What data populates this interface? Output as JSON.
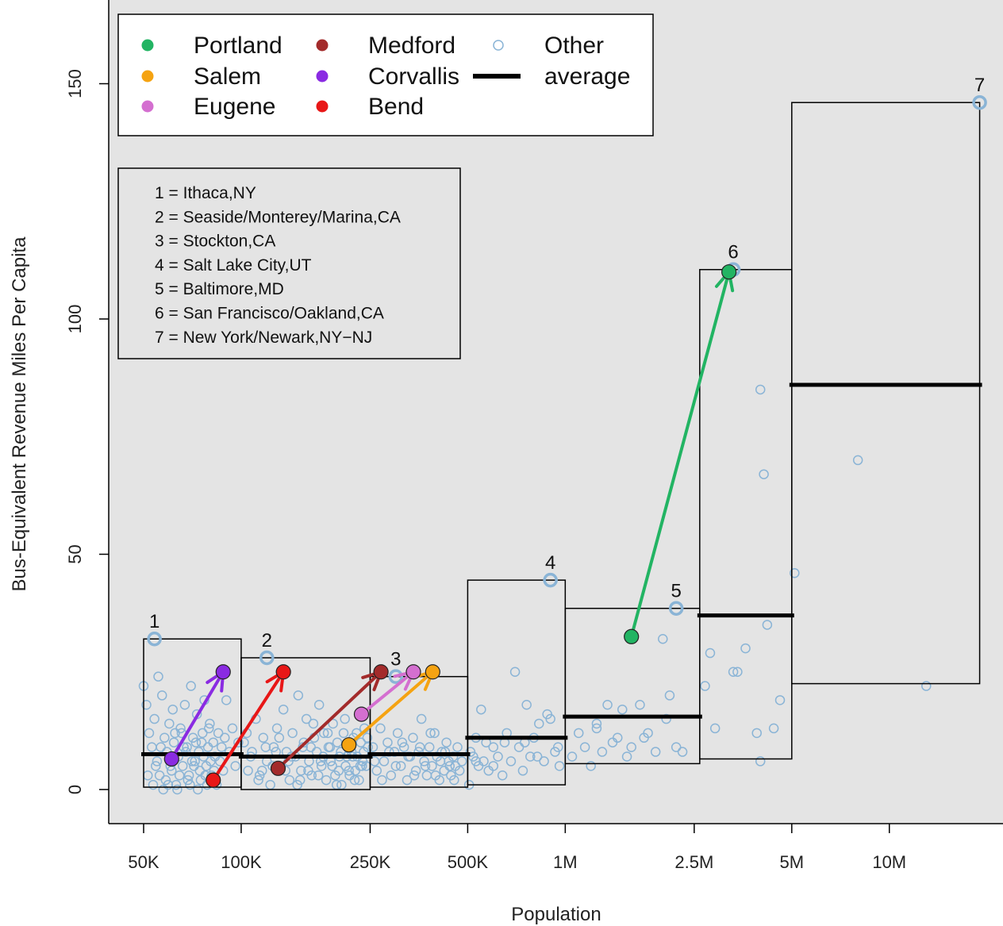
{
  "chart_data": {
    "type": "scatter",
    "title": "",
    "xlabel": "Population",
    "ylabel": "Bus-Equivalent Revenue Miles Per Capita",
    "x_scale": "log",
    "xlim": [
      42000,
      23000000
    ],
    "ylim": [
      -7,
      165
    ],
    "x_ticks": [
      {
        "value": 50000,
        "label": "50K"
      },
      {
        "value": 100000,
        "label": "100K"
      },
      {
        "value": 250000,
        "label": "250K"
      },
      {
        "value": 500000,
        "label": "500K"
      },
      {
        "value": 1000000,
        "label": "1M"
      },
      {
        "value": 2500000,
        "label": "2.5M"
      },
      {
        "value": 5000000,
        "label": "5M"
      },
      {
        "value": 10000000,
        "label": "10M"
      }
    ],
    "y_ticks": [
      {
        "value": 0,
        "label": "0"
      },
      {
        "value": 50,
        "label": "50"
      },
      {
        "value": 100,
        "label": "100"
      },
      {
        "value": 150,
        "label": "150"
      }
    ],
    "grid": false,
    "legend_position": "top-left",
    "colors": {
      "panel_background": "#e4e4e4",
      "Portland": "#22b463",
      "Salem": "#f5a312",
      "Eugene": "#d46fd0",
      "Medford": "#a32b2b",
      "Corvallis": "#8a2be2",
      "Bend": "#e81717",
      "Other": "#8ab4d6",
      "average": "#000000"
    },
    "legend": [
      {
        "name": "Portland",
        "kind": "point"
      },
      {
        "name": "Salem",
        "kind": "point"
      },
      {
        "name": "Eugene",
        "kind": "point"
      },
      {
        "name": "Medford",
        "kind": "point"
      },
      {
        "name": "Corvallis",
        "kind": "point"
      },
      {
        "name": "Bend",
        "kind": "point"
      },
      {
        "name": "Other",
        "kind": "open-point"
      },
      {
        "name": "average",
        "kind": "line"
      }
    ],
    "key_lines": [
      "1 = Ithaca,NY",
      "2 = Seaside/Monterey/Marina,CA",
      "3 = Stockton,CA",
      "4 = Salt Lake City,UT",
      "5 = Baltimore,MD",
      "6 = San Francisco/Oakland,CA",
      "7 = New York/Newark,NY−NJ"
    ],
    "bins": [
      {
        "x0": 50000,
        "x1": 100000,
        "ymin": 0.5,
        "ymax": 32,
        "average": 7.5
      },
      {
        "x0": 100000,
        "x1": 250000,
        "ymin": 0,
        "ymax": 28,
        "average": 7
      },
      {
        "x0": 250000,
        "x1": 500000,
        "ymin": 0.5,
        "ymax": 24,
        "average": 7.5
      },
      {
        "x0": 500000,
        "x1": 1000000,
        "ymin": 1,
        "ymax": 44.5,
        "average": 11
      },
      {
        "x0": 1000000,
        "x1": 2600000,
        "ymin": 5.5,
        "ymax": 38.5,
        "average": 15.5
      },
      {
        "x0": 2600000,
        "x1": 5000000,
        "ymin": 6.5,
        "ymax": 110.5,
        "average": 37
      },
      {
        "x0": 5000000,
        "x1": 19000000,
        "ymin": 22.5,
        "ymax": 146,
        "average": 86
      }
    ],
    "highlights": [
      {
        "tag": "1",
        "x": 54000,
        "y": 32
      },
      {
        "tag": "2",
        "x": 120000,
        "y": 28
      },
      {
        "tag": "3",
        "x": 300000,
        "y": 24
      },
      {
        "tag": "4",
        "x": 900000,
        "y": 44.5
      },
      {
        "tag": "5",
        "x": 2200000,
        "y": 38.5
      },
      {
        "tag": "6",
        "x": 3300000,
        "y": 110.5
      },
      {
        "tag": "7",
        "x": 19000000,
        "y": 146
      }
    ],
    "cities": [
      {
        "name": "Portland",
        "from": {
          "x": 1600000,
          "y": 32.5
        },
        "to": {
          "x": 3200000,
          "y": 110
        }
      },
      {
        "name": "Salem",
        "from": {
          "x": 215000,
          "y": 9.5
        },
        "to": {
          "x": 390000,
          "y": 25
        }
      },
      {
        "name": "Eugene",
        "from": {
          "x": 235000,
          "y": 16
        },
        "to": {
          "x": 340000,
          "y": 25
        }
      },
      {
        "name": "Medford",
        "from": {
          "x": 130000,
          "y": 4.5
        },
        "to": {
          "x": 270000,
          "y": 25
        }
      },
      {
        "name": "Corvallis",
        "from": {
          "x": 61000,
          "y": 6.5
        },
        "to": {
          "x": 88000,
          "y": 25
        }
      },
      {
        "name": "Bend",
        "from": {
          "x": 82000,
          "y": 2
        },
        "to": {
          "x": 135000,
          "y": 25
        }
      }
    ],
    "other": [
      [
        50000,
        22
      ],
      [
        51000,
        18
      ],
      [
        52000,
        12
      ],
      [
        53000,
        9
      ],
      [
        54000,
        15
      ],
      [
        55000,
        6
      ],
      [
        56000,
        3
      ],
      [
        57000,
        20
      ],
      [
        58000,
        11
      ],
      [
        59000,
        8
      ],
      [
        60000,
        14
      ],
      [
        61000,
        4
      ],
      [
        62000,
        10
      ],
      [
        63000,
        1
      ],
      [
        64000,
        7
      ],
      [
        65000,
        13
      ],
      [
        66000,
        5
      ],
      [
        67000,
        18
      ],
      [
        68000,
        9
      ],
      [
        69000,
        3
      ],
      [
        70000,
        22
      ],
      [
        71000,
        11
      ],
      [
        72000,
        6
      ],
      [
        73000,
        16
      ],
      [
        74000,
        8
      ],
      [
        75000,
        2
      ],
      [
        76000,
        12
      ],
      [
        77000,
        19
      ],
      [
        78000,
        5
      ],
      [
        79000,
        9
      ],
      [
        80000,
        14
      ],
      [
        81000,
        3
      ],
      [
        82000,
        10
      ],
      [
        83000,
        7
      ],
      [
        84000,
        1
      ],
      [
        85000,
        12
      ],
      [
        86000,
        6
      ],
      [
        87000,
        9
      ],
      [
        88000,
        4
      ],
      [
        89000,
        11
      ],
      [
        90000,
        19
      ],
      [
        92000,
        8
      ],
      [
        94000,
        13
      ],
      [
        96000,
        5
      ],
      [
        98000,
        10
      ],
      [
        51500,
        3
      ],
      [
        53500,
        1
      ],
      [
        55500,
        24
      ],
      [
        57500,
        0
      ],
      [
        59500,
        1
      ],
      [
        61500,
        17
      ],
      [
        63500,
        0
      ],
      [
        65500,
        12
      ],
      [
        67500,
        8
      ],
      [
        69500,
        1
      ],
      [
        71500,
        5
      ],
      [
        73500,
        0
      ],
      [
        75500,
        10
      ],
      [
        77500,
        3
      ],
      [
        79500,
        13
      ],
      [
        54500,
        5
      ],
      [
        56500,
        9
      ],
      [
        58500,
        2
      ],
      [
        60500,
        5
      ],
      [
        62500,
        12
      ],
      [
        64500,
        3
      ],
      [
        66500,
        9
      ],
      [
        68500,
        2
      ],
      [
        70500,
        6
      ],
      [
        72500,
        10
      ],
      [
        74500,
        4
      ],
      [
        76500,
        7
      ],
      [
        78500,
        1
      ],
      [
        80500,
        6
      ],
      [
        82500,
        4
      ],
      [
        102000,
        10
      ],
      [
        105000,
        4
      ],
      [
        108000,
        8
      ],
      [
        111000,
        15
      ],
      [
        114000,
        3
      ],
      [
        117000,
        11
      ],
      [
        120000,
        6
      ],
      [
        123000,
        1
      ],
      [
        126000,
        9
      ],
      [
        129000,
        13
      ],
      [
        132000,
        5
      ],
      [
        135000,
        17
      ],
      [
        138000,
        8
      ],
      [
        141000,
        2
      ],
      [
        144000,
        12
      ],
      [
        147000,
        7
      ],
      [
        150000,
        20
      ],
      [
        153000,
        4
      ],
      [
        156000,
        10
      ],
      [
        159000,
        15
      ],
      [
        162000,
        6
      ],
      [
        165000,
        3
      ],
      [
        168000,
        11
      ],
      [
        171000,
        8
      ],
      [
        174000,
        18
      ],
      [
        177000,
        5
      ],
      [
        180000,
        12
      ],
      [
        183000,
        2
      ],
      [
        186000,
        9
      ],
      [
        189000,
        6
      ],
      [
        192000,
        14
      ],
      [
        195000,
        3
      ],
      [
        198000,
        10
      ],
      [
        201000,
        7
      ],
      [
        204000,
        1
      ],
      [
        207000,
        12
      ],
      [
        210000,
        5
      ],
      [
        213000,
        9
      ],
      [
        216000,
        3
      ],
      [
        219000,
        8
      ],
      [
        222000,
        11
      ],
      [
        225000,
        4
      ],
      [
        228000,
        7
      ],
      [
        231000,
        2
      ],
      [
        234000,
        10
      ],
      [
        237000,
        6
      ],
      [
        240000,
        13
      ],
      [
        243000,
        5
      ],
      [
        246000,
        9
      ],
      [
        104000,
        12
      ],
      [
        107000,
        7
      ],
      [
        113000,
        2
      ],
      [
        119000,
        9
      ],
      [
        125000,
        5
      ],
      [
        131000,
        11
      ],
      [
        137000,
        4
      ],
      [
        143000,
        7
      ],
      [
        149000,
        1
      ],
      [
        155000,
        9
      ],
      [
        161000,
        4
      ],
      [
        167000,
        14
      ],
      [
        173000,
        3
      ],
      [
        179000,
        7
      ],
      [
        185000,
        12
      ],
      [
        191000,
        5
      ],
      [
        197000,
        1
      ],
      [
        203000,
        8
      ],
      [
        209000,
        15
      ],
      [
        215000,
        4
      ],
      [
        221000,
        7
      ],
      [
        227000,
        12
      ],
      [
        233000,
        5
      ],
      [
        239000,
        8
      ],
      [
        116000,
        4
      ],
      [
        128000,
        8
      ],
      [
        140000,
        6
      ],
      [
        152000,
        2
      ],
      [
        164000,
        9
      ],
      [
        176000,
        6
      ],
      [
        188000,
        9
      ],
      [
        200000,
        4
      ],
      [
        212000,
        7
      ],
      [
        224000,
        2
      ],
      [
        236000,
        5
      ],
      [
        245000,
        11
      ],
      [
        255000,
        9
      ],
      [
        262000,
        4
      ],
      [
        269000,
        13
      ],
      [
        276000,
        6
      ],
      [
        283000,
        10
      ],
      [
        290000,
        3
      ],
      [
        297000,
        8
      ],
      [
        304000,
        12
      ],
      [
        311000,
        5
      ],
      [
        318000,
        9
      ],
      [
        325000,
        2
      ],
      [
        332000,
        7
      ],
      [
        339000,
        11
      ],
      [
        346000,
        4
      ],
      [
        353000,
        8
      ],
      [
        360000,
        15
      ],
      [
        367000,
        6
      ],
      [
        374000,
        3
      ],
      [
        381000,
        9
      ],
      [
        388000,
        5
      ],
      [
        395000,
        12
      ],
      [
        402000,
        7
      ],
      [
        409000,
        2
      ],
      [
        416000,
        8
      ],
      [
        423000,
        4
      ],
      [
        430000,
        10
      ],
      [
        437000,
        6
      ],
      [
        444000,
        3
      ],
      [
        451000,
        7
      ],
      [
        458000,
        5
      ],
      [
        465000,
        9
      ],
      [
        472000,
        4
      ],
      [
        480000,
        6
      ],
      [
        258000,
        6
      ],
      [
        272000,
        2
      ],
      [
        286000,
        8
      ],
      [
        300000,
        5
      ],
      [
        314000,
        10
      ],
      [
        328000,
        7
      ],
      [
        342000,
        3
      ],
      [
        356000,
        9
      ],
      [
        370000,
        5
      ],
      [
        384000,
        12
      ],
      [
        398000,
        3
      ],
      [
        412000,
        6
      ],
      [
        426000,
        8
      ],
      [
        440000,
        5
      ],
      [
        454000,
        2
      ],
      [
        505000,
        1
      ],
      [
        510000,
        8
      ],
      [
        520000,
        7
      ],
      [
        530000,
        11
      ],
      [
        540000,
        5
      ],
      [
        550000,
        17
      ],
      [
        560000,
        6
      ],
      [
        570000,
        10
      ],
      [
        580000,
        4
      ],
      [
        600000,
        9
      ],
      [
        620000,
        7
      ],
      [
        640000,
        3
      ],
      [
        660000,
        12
      ],
      [
        680000,
        6
      ],
      [
        700000,
        25
      ],
      [
        720000,
        9
      ],
      [
        740000,
        4
      ],
      [
        760000,
        18
      ],
      [
        780000,
        7
      ],
      [
        800000,
        11
      ],
      [
        830000,
        14
      ],
      [
        860000,
        6
      ],
      [
        880000,
        16
      ],
      [
        900000,
        15
      ],
      [
        930000,
        8
      ],
      [
        960000,
        5
      ],
      [
        530000,
        6
      ],
      [
        600000,
        5
      ],
      [
        650000,
        10
      ],
      [
        750000,
        10
      ],
      [
        820000,
        7
      ],
      [
        950000,
        9
      ],
      [
        1050000,
        7
      ],
      [
        1100000,
        12
      ],
      [
        1150000,
        9
      ],
      [
        1200000,
        5
      ],
      [
        1250000,
        14
      ],
      [
        1300000,
        8
      ],
      [
        1350000,
        18
      ],
      [
        1400000,
        10
      ],
      [
        1450000,
        11
      ],
      [
        1500000,
        17
      ],
      [
        1600000,
        9
      ],
      [
        1700000,
        18
      ],
      [
        1800000,
        12
      ],
      [
        1900000,
        8
      ],
      [
        2000000,
        32
      ],
      [
        2100000,
        20
      ],
      [
        2200000,
        9
      ],
      [
        2300000,
        8
      ],
      [
        1250000,
        13
      ],
      [
        1550000,
        7
      ],
      [
        1750000,
        11
      ],
      [
        2050000,
        15
      ],
      [
        2700000,
        22
      ],
      [
        2800000,
        29
      ],
      [
        2900000,
        13
      ],
      [
        3300000,
        25
      ],
      [
        3400000,
        25
      ],
      [
        3600000,
        30
      ],
      [
        4000000,
        85
      ],
      [
        4100000,
        67
      ],
      [
        4200000,
        35
      ],
      [
        4400000,
        13
      ],
      [
        4600000,
        19
      ],
      [
        3900000,
        12
      ],
      [
        4000000,
        6
      ],
      [
        5100000,
        46
      ],
      [
        8000000,
        70
      ],
      [
        13000000,
        22
      ]
    ]
  }
}
